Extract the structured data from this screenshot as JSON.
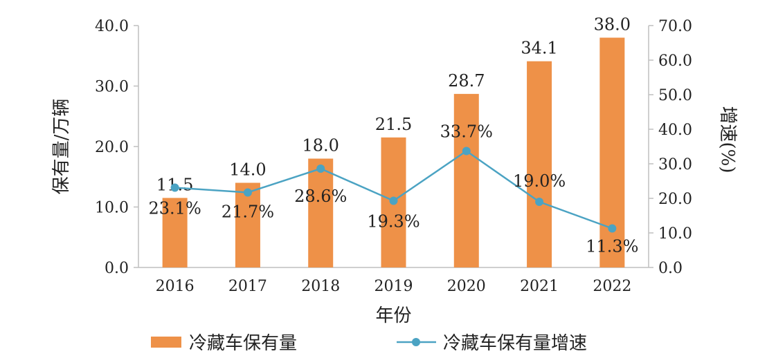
{
  "chart_data": {
    "type": "bar",
    "categories": [
      "2016",
      "2017",
      "2018",
      "2019",
      "2020",
      "2021",
      "2022"
    ],
    "series": [
      {
        "name": "冷藏车保有量",
        "type": "bar",
        "axis": "left",
        "color": "#EE9148",
        "values": [
          11.5,
          14.0,
          18.0,
          21.5,
          28.7,
          34.1,
          38.0
        ],
        "labels": [
          "11.5",
          "14.0",
          "18.0",
          "21.5",
          "28.7",
          "34.1",
          "38.0"
        ]
      },
      {
        "name": "冷藏车保有量增速",
        "type": "line",
        "axis": "right",
        "color": "#4BA3C3",
        "values": [
          23.1,
          21.7,
          28.6,
          19.3,
          33.7,
          19.0,
          11.3
        ],
        "labels": [
          "23.1%",
          "21.7%",
          "28.6%",
          "19.3%",
          "33.7%",
          "19.0%",
          "11.3%"
        ]
      }
    ],
    "xlabel": "年份",
    "ylabel": "保有量/万辆",
    "y2label": "增速(%)",
    "ylim": [
      0,
      40
    ],
    "y2lim": [
      0,
      70
    ],
    "yticks": [
      "0.0",
      "10.0",
      "20.0",
      "30.0",
      "40.0"
    ],
    "y2ticks": [
      "0.0",
      "10.0",
      "20.0",
      "30.0",
      "40.0",
      "50.0",
      "60.0",
      "70.0"
    ],
    "grid": false,
    "legend": "bottom"
  }
}
